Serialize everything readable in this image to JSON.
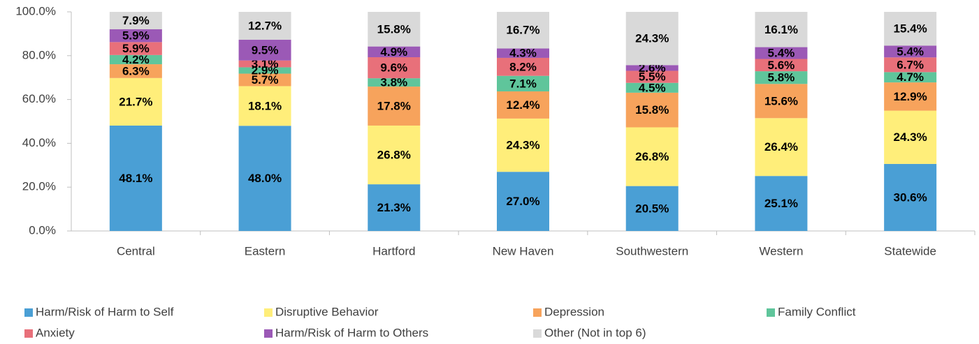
{
  "chart_data": {
    "type": "stacked-bar",
    "categories": [
      "Central",
      "Eastern",
      "Hartford",
      "New Haven",
      "Southwestern",
      "Western",
      "Statewide"
    ],
    "ylim": [
      0,
      100
    ],
    "yticks": [
      {
        "value": 0,
        "label": "0.0%"
      },
      {
        "value": 20,
        "label": "20.0%"
      },
      {
        "value": 40,
        "label": "40.0%"
      },
      {
        "value": 60,
        "label": "60.0%"
      },
      {
        "value": 80,
        "label": "80.0%"
      },
      {
        "value": 100,
        "label": "100.0%"
      }
    ],
    "series": [
      {
        "name": "Harm/Risk of Harm to Self",
        "color": "#4a9fd5",
        "values": [
          48.1,
          48.0,
          21.3,
          27.0,
          20.5,
          25.1,
          30.6
        ],
        "value_labels": [
          "48.1%",
          "48.0%",
          "21.3%",
          "27.0%",
          "20.5%",
          "25.1%",
          "30.6%"
        ]
      },
      {
        "name": "Disruptive Behavior",
        "color": "#ffee7a",
        "values": [
          21.7,
          18.1,
          26.8,
          24.3,
          26.8,
          26.4,
          24.3
        ],
        "value_labels": [
          "21.7%",
          "18.1%",
          "26.8%",
          "24.3%",
          "26.8%",
          "26.4%",
          "24.3%"
        ]
      },
      {
        "name": "Depression",
        "color": "#f7a35c",
        "values": [
          6.3,
          5.7,
          17.8,
          12.4,
          15.8,
          15.6,
          12.9
        ],
        "value_labels": [
          "6.3%",
          "5.7%",
          "17.8%",
          "12.4%",
          "15.8%",
          "15.6%",
          "12.9%"
        ]
      },
      {
        "name": "Family Conflict",
        "color": "#5fc59b",
        "values": [
          4.2,
          2.9,
          3.8,
          7.1,
          4.5,
          5.8,
          4.7
        ],
        "value_labels": [
          "4.2%",
          "2.9%",
          "3.8%",
          "7.1%",
          "4.5%",
          "5.8%",
          "4.7%"
        ]
      },
      {
        "name": "Anxiety",
        "color": "#e8707a",
        "values": [
          5.9,
          3.1,
          9.6,
          8.2,
          5.5,
          5.6,
          6.7
        ],
        "value_labels": [
          "5.9%",
          "3.1%",
          "9.6%",
          "8.2%",
          "5.5%",
          "5.6%",
          "6.7%"
        ]
      },
      {
        "name": "Harm/Risk of Harm to Others",
        "color": "#9b59b6",
        "values": [
          5.9,
          9.5,
          4.9,
          4.3,
          2.6,
          5.4,
          5.4
        ],
        "value_labels": [
          "5.9%",
          "9.5%",
          "4.9%",
          "4.3%",
          "2.6%",
          "5.4%",
          "5.4%"
        ]
      },
      {
        "name": "Other (Not in top 6)",
        "color": "#d9d9d9",
        "values": [
          7.9,
          12.7,
          15.8,
          16.7,
          24.3,
          16.1,
          15.4
        ],
        "value_labels": [
          "7.9%",
          "12.7%",
          "15.8%",
          "16.7%",
          "24.3%",
          "16.1%",
          "15.4%"
        ]
      }
    ]
  }
}
